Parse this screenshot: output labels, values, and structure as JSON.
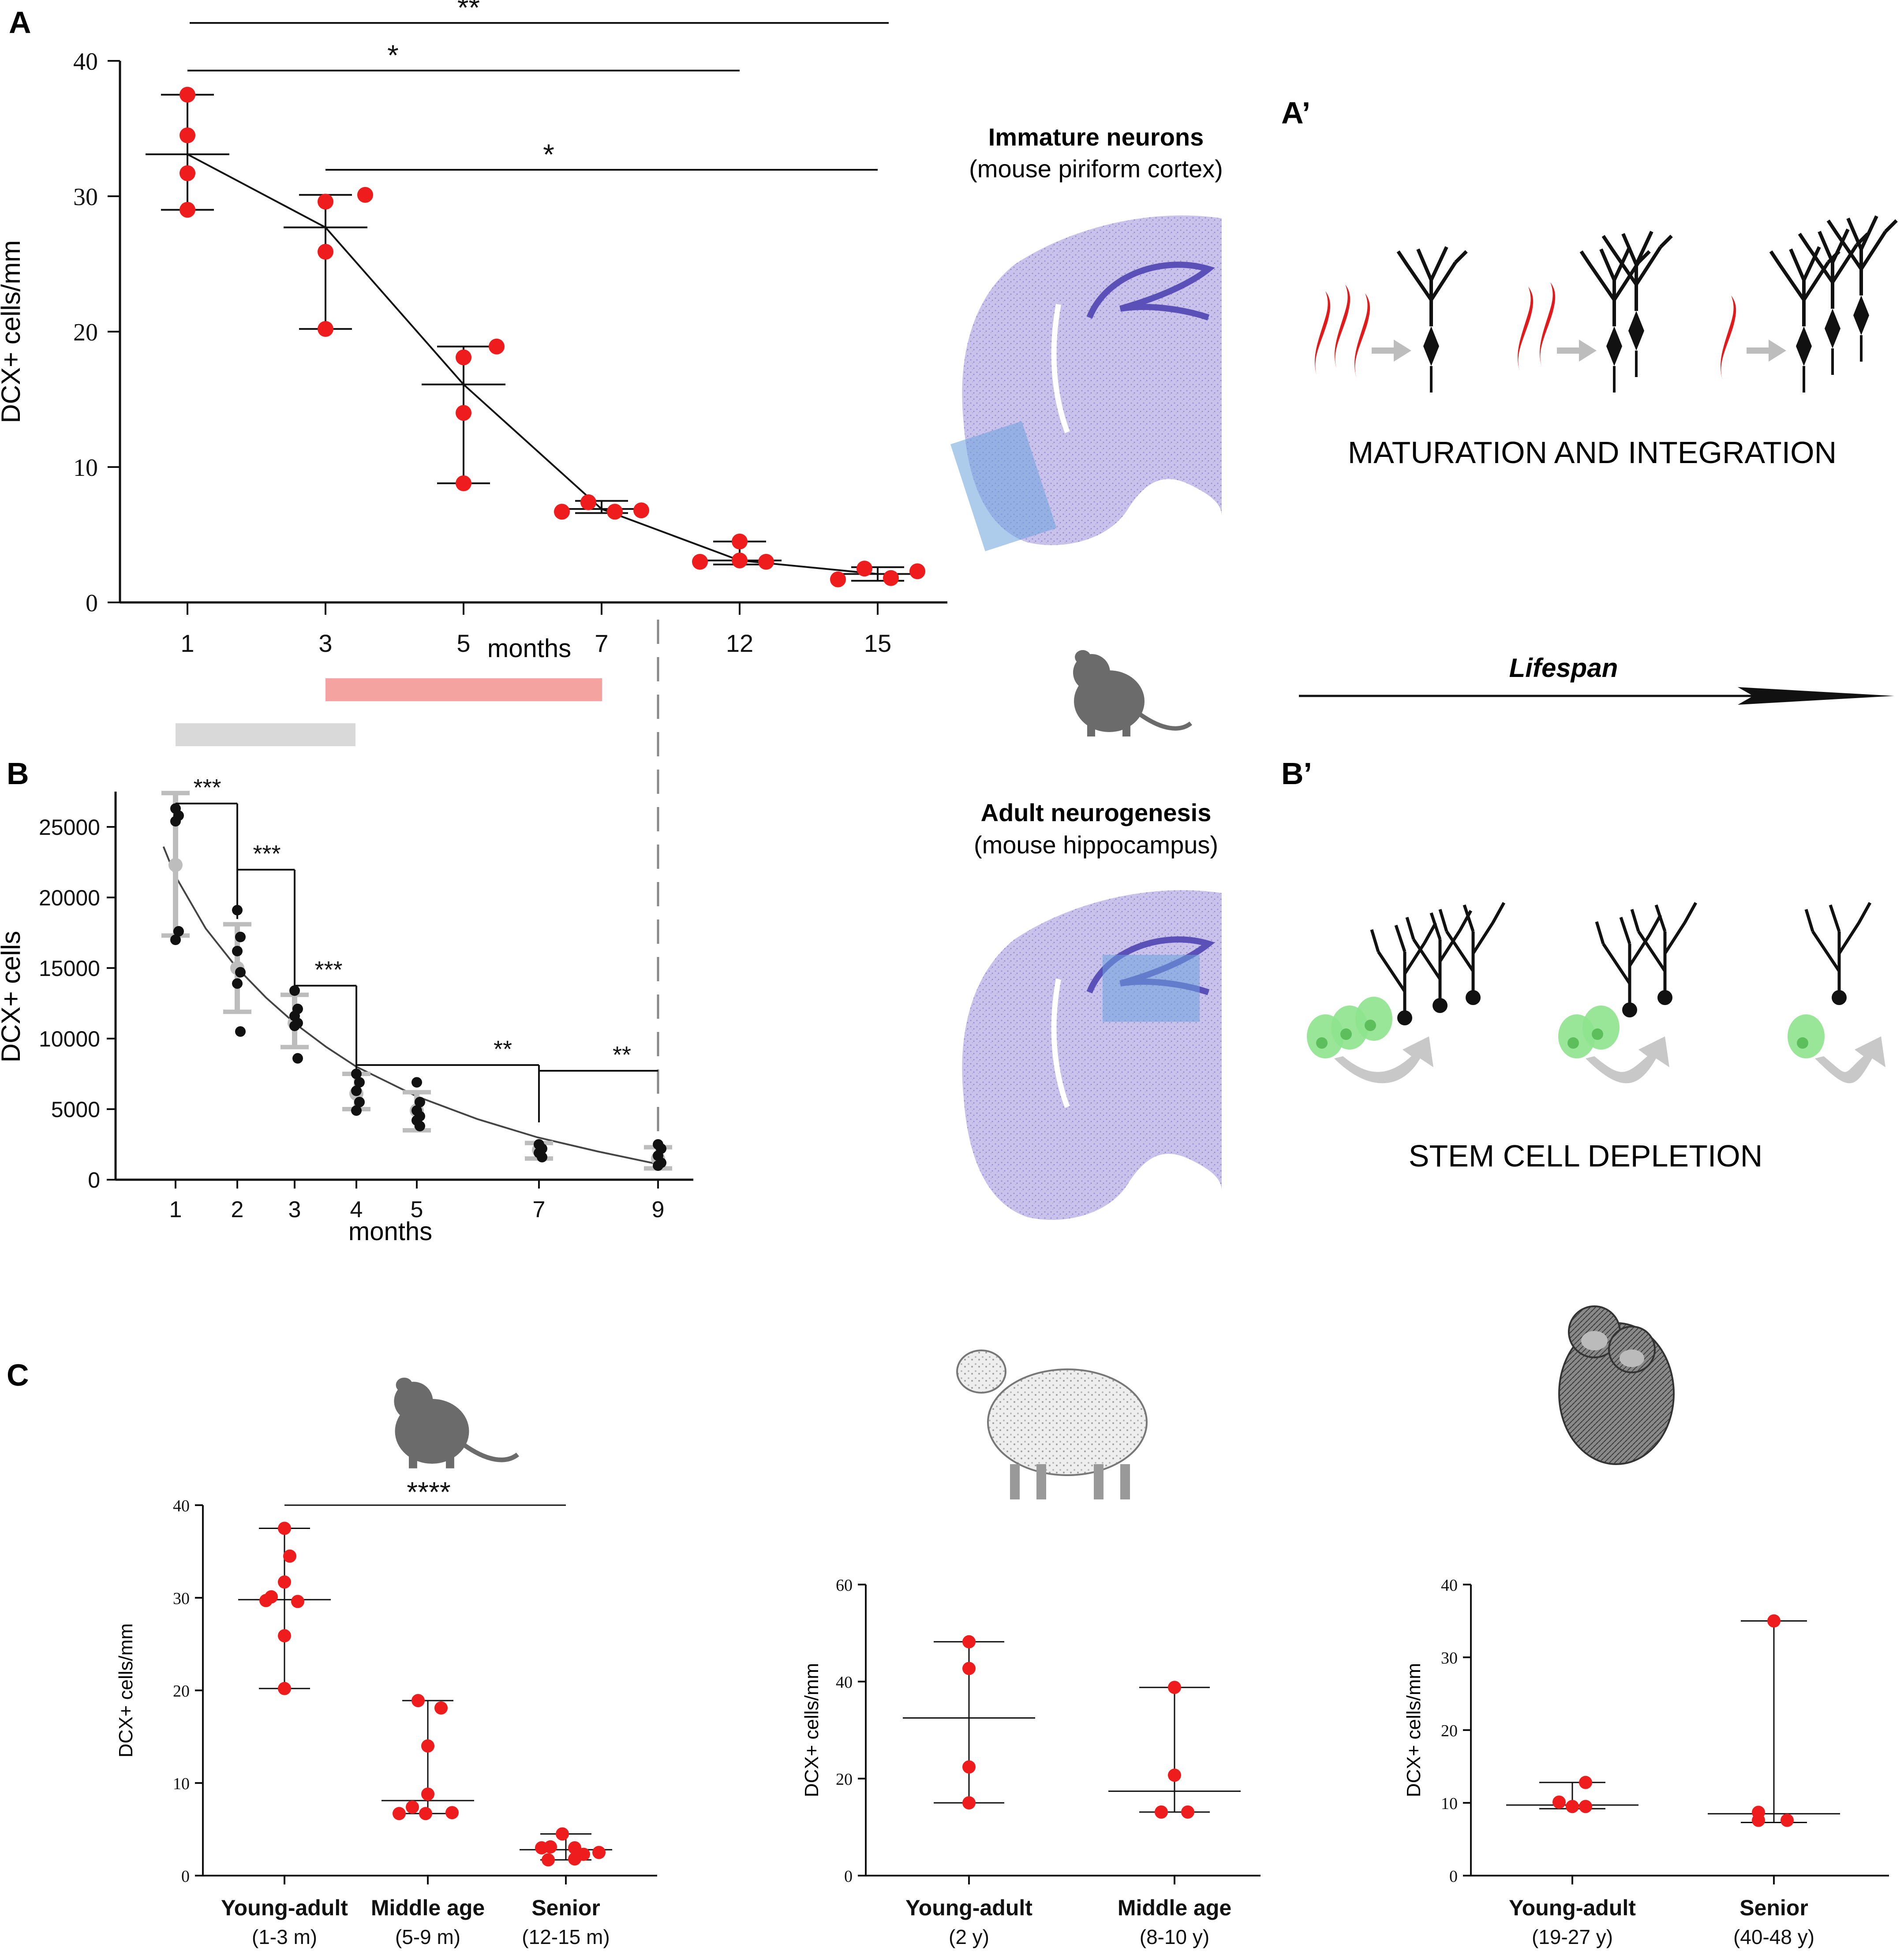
{
  "panels": {
    "A": "A",
    "A_prime": "A’",
    "B": "B",
    "B_prime": "B’",
    "C": "C"
  },
  "colors": {
    "red": "#ee1c1c",
    "black": "#111111",
    "grey": "#bdbdbd",
    "pink_bar": "#f4a3a0",
    "grey_bar": "#d9d9d9",
    "brain": "#b8b0e0",
    "blue_box": "#6aa3dd",
    "green_cell": "#8ee38e"
  },
  "center": {
    "immature_title": "Immature neurons",
    "immature_subtitle": "(mouse piriform cortex)",
    "adult_title": "Adult neurogenesis",
    "adult_subtitle": "(mouse hippocampus)"
  },
  "right": {
    "maturation_label": "MATURATION AND INTEGRATION",
    "lifespan_label": "Lifespan",
    "stem_label": "STEM CELL DEPLETION"
  },
  "icons": {
    "mouse": "mouse-icon",
    "sheep": "sheep-icon",
    "chimp": "chimpanzee-icon"
  },
  "chart_data": [
    {
      "id": "A",
      "type": "scatter",
      "title": "",
      "xlabel": "months",
      "ylabel": "DCX+ cells/mm",
      "ylim": [
        0,
        40
      ],
      "yticks": [
        0,
        10,
        20,
        30,
        40
      ],
      "categories": [
        "1",
        "3",
        "5",
        "7",
        "12",
        "15"
      ],
      "series": [
        {
          "name": "individual",
          "points": [
            [
              [
                37.5,
                0
              ],
              [
                34.5,
                0
              ],
              [
                31.7,
                0
              ],
              [
                29.0,
                0
              ]
            ],
            [
              [
                30.1,
                0.3
              ],
              [
                29.6,
                0
              ],
              [
                25.9,
                0
              ],
              [
                20.2,
                0
              ]
            ],
            [
              [
                18.9,
                0.25
              ],
              [
                18.1,
                0
              ],
              [
                14.0,
                0
              ],
              [
                8.8,
                0
              ]
            ],
            [
              [
                7.4,
                -0.1
              ],
              [
                6.7,
                -0.3
              ],
              [
                6.7,
                0.1
              ],
              [
                6.8,
                0.3
              ]
            ],
            [
              [
                4.5,
                0
              ],
              [
                3.0,
                -0.3
              ],
              [
                3.1,
                0
              ],
              [
                3.0,
                0.2
              ]
            ],
            [
              [
                2.5,
                -0.1
              ],
              [
                1.7,
                -0.3
              ],
              [
                1.8,
                0.1
              ],
              [
                2.3,
                0.3
              ]
            ]
          ]
        },
        {
          "name": "median",
          "values": [
            33.1,
            27.7,
            16.1,
            6.9,
            3.1,
            2.1
          ]
        },
        {
          "name": "range_low",
          "values": [
            29.0,
            20.2,
            8.8,
            6.6,
            2.8,
            1.6
          ]
        },
        {
          "name": "range_high",
          "values": [
            37.5,
            30.1,
            18.9,
            7.5,
            4.5,
            2.6
          ]
        }
      ],
      "significance": [
        {
          "from": "1",
          "to": "15",
          "label": "**"
        },
        {
          "from": "1",
          "to": "12",
          "label": "*"
        },
        {
          "from": "3",
          "to": "15",
          "label": "*"
        }
      ]
    },
    {
      "id": "B",
      "type": "scatter",
      "title": "",
      "xlabel": "months",
      "ylabel": "DCX+ cells",
      "ylim": [
        0,
        27500
      ],
      "yticks": [
        0,
        5000,
        10000,
        15000,
        20000,
        25000
      ],
      "x": [
        1,
        2,
        3,
        4,
        5,
        7,
        9
      ],
      "series": [
        {
          "name": "individual",
          "points": [
            [
              26300,
              25800,
              25400,
              17600,
              17000
            ],
            [
              19100,
              17200,
              16200,
              14700,
              13900,
              10500
            ],
            [
              13400,
              12100,
              11600,
              11100,
              10900,
              8600
            ],
            [
              7500,
              6900,
              6300,
              5500,
              4900
            ],
            [
              6900,
              5500,
              4900,
              4500,
              4200,
              3800
            ],
            [
              2500,
              2200,
              1900,
              1600
            ],
            [
              2500,
              2200,
              1700,
              1200,
              1000
            ]
          ]
        },
        {
          "name": "mean",
          "values": [
            22300,
            15000,
            11100,
            6100,
            4900,
            2100,
            1500
          ]
        },
        {
          "name": "sd_low",
          "values": [
            17300,
            11900,
            9400,
            5000,
            3500,
            1500,
            800
          ]
        },
        {
          "name": "sd_high",
          "values": [
            27400,
            18100,
            13100,
            7500,
            6200,
            2600,
            2300
          ]
        },
        {
          "name": "fit",
          "x": [
            0.8,
            1,
            1.5,
            2,
            2.5,
            3,
            3.5,
            4,
            5,
            6,
            7,
            8,
            9
          ],
          "values": [
            23600,
            21500,
            17800,
            15100,
            12900,
            11000,
            9400,
            8000,
            5900,
            4300,
            3000,
            2000,
            1100
          ]
        }
      ],
      "significance": [
        {
          "from": "1",
          "to": "2",
          "label": "***"
        },
        {
          "from": "2",
          "to": "3",
          "label": "***"
        },
        {
          "from": "3",
          "to": "4",
          "label": "***"
        },
        {
          "from": "4",
          "to": "7",
          "label": "**"
        },
        {
          "from": "4",
          "to": "9",
          "label": "**"
        }
      ]
    },
    {
      "id": "C_mouse",
      "type": "scatter",
      "xlabel": "",
      "ylabel": "DCX+ cells/mm",
      "ylim": [
        0,
        40
      ],
      "yticks": [
        0,
        10,
        20,
        30,
        40
      ],
      "categories": [
        "Young-adult",
        "Middle age",
        "Senior"
      ],
      "category_notes": [
        "(1-3 m)",
        "(5-9 m)",
        "(12-15 m)"
      ],
      "series": [
        {
          "name": "individual",
          "points": [
            [
              37.5,
              34.5,
              31.7,
              29.7,
              30.1,
              29.6,
              25.9,
              20.2
            ],
            [
              18.9,
              18.1,
              14.0,
              8.8,
              7.4,
              6.7,
              6.7,
              6.8
            ],
            [
              4.5,
              3.0,
              3.1,
              3.0,
              2.5,
              1.7,
              1.8,
              2.3
            ]
          ]
        },
        {
          "name": "median",
          "values": [
            29.8,
            8.1,
            2.8
          ]
        },
        {
          "name": "range_low",
          "values": [
            20.2,
            6.7,
            1.7
          ]
        },
        {
          "name": "range_high",
          "values": [
            37.5,
            18.9,
            4.5
          ]
        }
      ],
      "significance": [
        {
          "from": "Young-adult",
          "to": "Senior",
          "label": "****"
        }
      ]
    },
    {
      "id": "C_sheep",
      "type": "scatter",
      "ylabel": "DCX+ cells/mm",
      "ylim": [
        0,
        60
      ],
      "yticks": [
        0,
        20,
        40,
        60
      ],
      "categories": [
        "Young-adult",
        "Middle age"
      ],
      "category_notes": [
        "(2 y)",
        "(8-10 y)"
      ],
      "series": [
        {
          "name": "individual",
          "points": [
            [
              48.2,
              42.7,
              22.4,
              15.0
            ],
            [
              38.8,
              20.7,
              13.1,
              13.1
            ]
          ]
        },
        {
          "name": "median",
          "values": [
            32.5,
            17.4
          ]
        },
        {
          "name": "range_low",
          "values": [
            15.0,
            13.1
          ]
        },
        {
          "name": "range_high",
          "values": [
            48.2,
            38.8
          ]
        }
      ]
    },
    {
      "id": "C_chimp",
      "type": "scatter",
      "ylabel": "DCX+ cells/mm",
      "ylim": [
        0,
        40
      ],
      "yticks": [
        0,
        10,
        20,
        30,
        40
      ],
      "categories": [
        "Young-adult",
        "Senior"
      ],
      "category_notes": [
        "(19-27 y)",
        "(40-48 y)"
      ],
      "series": [
        {
          "name": "individual",
          "points": [
            [
              12.8,
              10.1,
              9.5,
              9.5
            ],
            [
              35.0,
              8.7,
              7.6,
              7.6
            ]
          ]
        },
        {
          "name": "median",
          "values": [
            9.7,
            8.5
          ]
        },
        {
          "name": "range_low",
          "values": [
            9.2,
            7.3
          ]
        },
        {
          "name": "range_high",
          "values": [
            12.8,
            35.0
          ]
        }
      ]
    }
  ]
}
